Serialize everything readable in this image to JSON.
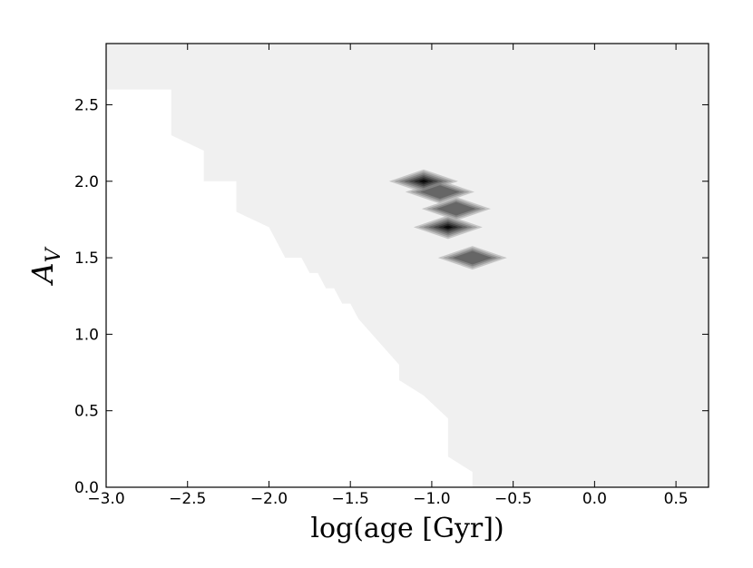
{
  "chart_data": {
    "type": "contour",
    "xlabel": "log(age [Gyr])",
    "ylabel": [
      "A",
      "V"
    ],
    "xlim": [
      -3.0,
      0.7
    ],
    "ylim": [
      0.0,
      2.9
    ],
    "xticks": [
      {
        "value": -3.0,
        "label": "−3.0"
      },
      {
        "value": -2.5,
        "label": "−2.5"
      },
      {
        "value": -2.0,
        "label": "−2.0"
      },
      {
        "value": -1.5,
        "label": "−1.5"
      },
      {
        "value": -1.0,
        "label": "−1.0"
      },
      {
        "value": -0.5,
        "label": "−0.5"
      },
      {
        "value": 0.0,
        "label": "0.0"
      },
      {
        "value": 0.5,
        "label": "0.5"
      }
    ],
    "yticks": [
      {
        "value": 0.0,
        "label": "0.0"
      },
      {
        "value": 0.5,
        "label": "0.5"
      },
      {
        "value": 1.0,
        "label": "1.0"
      },
      {
        "value": 1.5,
        "label": "1.5"
      },
      {
        "value": 2.0,
        "label": "2.0"
      },
      {
        "value": 2.5,
        "label": "2.5"
      }
    ],
    "region_color": "#f0f0f0",
    "boundary": {
      "x": [
        -3.0,
        -2.6,
        -2.6,
        -2.4,
        -2.4,
        -2.2,
        -2.2,
        -2.0,
        -1.9,
        -1.8,
        -1.75,
        -1.7,
        -1.65,
        -1.6,
        -1.55,
        -1.5,
        -1.45,
        -1.2,
        -1.2,
        -1.05,
        -0.9,
        -0.9,
        -0.75,
        -0.75
      ],
      "y": [
        2.6,
        2.6,
        2.3,
        2.2,
        2.0,
        2.0,
        1.8,
        1.7,
        1.5,
        1.5,
        1.4,
        1.4,
        1.3,
        1.3,
        1.2,
        1.2,
        1.1,
        0.8,
        0.7,
        0.6,
        0.45,
        0.2,
        0.1,
        0.0
      ]
    },
    "peaks": {
      "x": [
        -1.05,
        -0.95,
        -0.85,
        -0.9,
        -0.75
      ],
      "y": [
        2.0,
        1.93,
        1.82,
        1.7,
        1.5
      ],
      "level": [
        1.0,
        0.5,
        0.5,
        1.0,
        0.6
      ]
    }
  }
}
